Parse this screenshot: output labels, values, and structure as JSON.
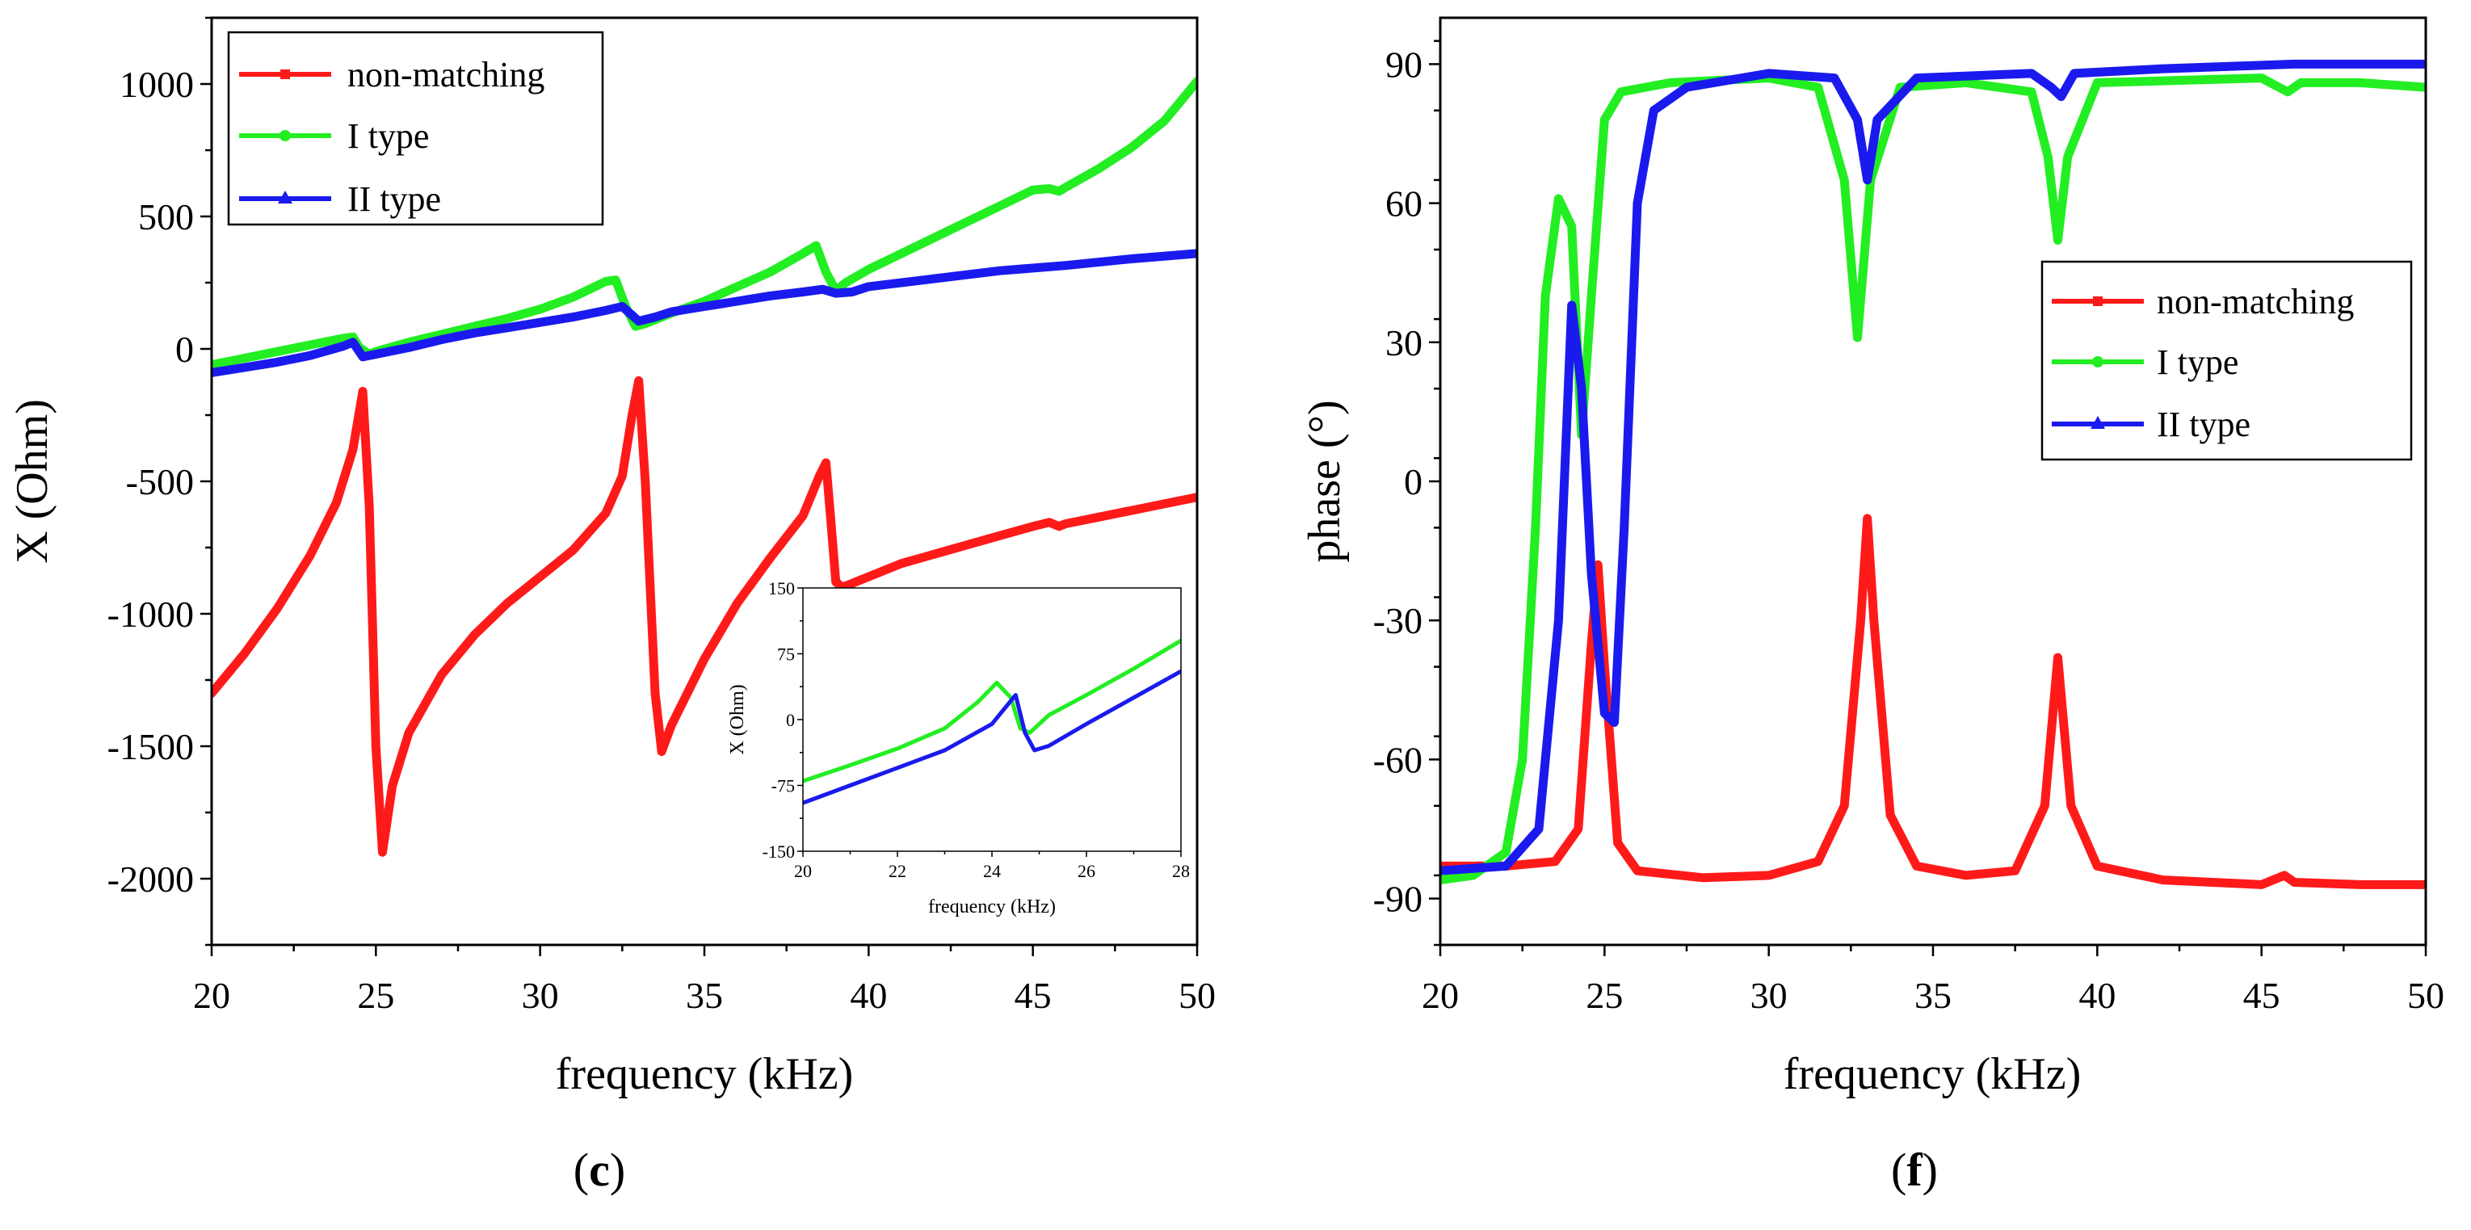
{
  "chart_data": [
    {
      "id": "c",
      "type": "line",
      "panel_label": "c",
      "xlabel": "frequency (kHz)",
      "ylabel": "X (Ohm)",
      "xlim": [
        20,
        50
      ],
      "ylim": [
        -2250,
        1250
      ],
      "xticks": [
        20,
        25,
        30,
        35,
        40,
        45,
        50
      ],
      "xtick_labels": [
        "20",
        "25",
        "30",
        "35",
        "40",
        "45",
        "50"
      ],
      "yticks": [
        -2000,
        -1500,
        -1000,
        -500,
        0,
        500,
        1000
      ],
      "ytick_labels": [
        "-2000",
        "-1500",
        "-1000",
        "-500",
        "0",
        "500",
        "1000"
      ],
      "legend_position": "top-left",
      "series": [
        {
          "name": "non-matching",
          "color": "#ff1a1a",
          "marker": "square",
          "points": [
            [
              20,
              -1300
            ],
            [
              21,
              -1150
            ],
            [
              22,
              -980
            ],
            [
              23,
              -780
            ],
            [
              23.8,
              -580
            ],
            [
              24.3,
              -380
            ],
            [
              24.6,
              -160
            ],
            [
              24.8,
              -600
            ],
            [
              25,
              -1500
            ],
            [
              25.2,
              -1900
            ],
            [
              25.5,
              -1650
            ],
            [
              26,
              -1450
            ],
            [
              27,
              -1230
            ],
            [
              28,
              -1080
            ],
            [
              29,
              -960
            ],
            [
              30,
              -860
            ],
            [
              31,
              -760
            ],
            [
              32,
              -620
            ],
            [
              32.5,
              -480
            ],
            [
              32.8,
              -250
            ],
            [
              33,
              -120
            ],
            [
              33.2,
              -500
            ],
            [
              33.5,
              -1300
            ],
            [
              33.7,
              -1520
            ],
            [
              34,
              -1420
            ],
            [
              35,
              -1170
            ],
            [
              36,
              -960
            ],
            [
              37,
              -790
            ],
            [
              38,
              -630
            ],
            [
              38.5,
              -480
            ],
            [
              38.7,
              -430
            ],
            [
              38.85,
              -650
            ],
            [
              39,
              -880
            ],
            [
              39.2,
              -900
            ],
            [
              40,
              -860
            ],
            [
              41,
              -810
            ],
            [
              42,
              -775
            ],
            [
              43,
              -740
            ],
            [
              44,
              -705
            ],
            [
              45,
              -670
            ],
            [
              45.5,
              -655
            ],
            [
              45.8,
              -670
            ],
            [
              46,
              -660
            ],
            [
              47,
              -635
            ],
            [
              48,
              -610
            ],
            [
              49,
              -585
            ],
            [
              50,
              -560
            ]
          ]
        },
        {
          "name": "I type",
          "color": "#22ee22",
          "marker": "circle",
          "points": [
            [
              20,
              -60
            ],
            [
              21,
              -35
            ],
            [
              22,
              -10
            ],
            [
              23,
              15
            ],
            [
              24,
              40
            ],
            [
              24.3,
              45
            ],
            [
              24.5,
              5
            ],
            [
              24.8,
              -20
            ],
            [
              25,
              -10
            ],
            [
              26,
              25
            ],
            [
              27,
              55
            ],
            [
              28,
              85
            ],
            [
              29,
              115
            ],
            [
              30,
              150
            ],
            [
              31,
              195
            ],
            [
              32,
              255
            ],
            [
              32.3,
              260
            ],
            [
              32.6,
              160
            ],
            [
              32.9,
              85
            ],
            [
              33.2,
              95
            ],
            [
              34,
              135
            ],
            [
              35,
              180
            ],
            [
              36,
              235
            ],
            [
              37,
              290
            ],
            [
              38,
              360
            ],
            [
              38.4,
              390
            ],
            [
              38.7,
              290
            ],
            [
              39,
              220
            ],
            [
              39.3,
              250
            ],
            [
              40,
              300
            ],
            [
              41,
              360
            ],
            [
              42,
              420
            ],
            [
              43,
              480
            ],
            [
              44,
              540
            ],
            [
              45,
              600
            ],
            [
              45.5,
              605
            ],
            [
              45.8,
              595
            ],
            [
              46,
              610
            ],
            [
              47,
              680
            ],
            [
              48,
              760
            ],
            [
              49,
              860
            ],
            [
              50,
              1010
            ]
          ]
        },
        {
          "name": "II type",
          "color": "#1a1aee",
          "marker": "triangle",
          "points": [
            [
              20,
              -90
            ],
            [
              21,
              -70
            ],
            [
              22,
              -50
            ],
            [
              23,
              -25
            ],
            [
              24,
              10
            ],
            [
              24.3,
              25
            ],
            [
              24.6,
              -30
            ],
            [
              25,
              -20
            ],
            [
              26,
              5
            ],
            [
              27,
              35
            ],
            [
              28,
              60
            ],
            [
              29,
              80
            ],
            [
              30,
              100
            ],
            [
              31,
              120
            ],
            [
              32,
              145
            ],
            [
              32.5,
              160
            ],
            [
              33,
              105
            ],
            [
              33.5,
              120
            ],
            [
              34,
              140
            ],
            [
              35,
              160
            ],
            [
              36,
              180
            ],
            [
              37,
              200
            ],
            [
              38,
              215
            ],
            [
              38.6,
              225
            ],
            [
              39,
              210
            ],
            [
              39.5,
              215
            ],
            [
              40,
              235
            ],
            [
              42,
              265
            ],
            [
              44,
              295
            ],
            [
              46,
              315
            ],
            [
              48,
              340
            ],
            [
              50,
              360
            ]
          ]
        }
      ],
      "inset": {
        "type": "line",
        "xlabel": "frequency (kHz)",
        "ylabel": "X (Ohm)",
        "xlim": [
          20,
          28
        ],
        "ylim": [
          -150,
          150
        ],
        "xticks": [
          20,
          22,
          24,
          26,
          28
        ],
        "xtick_labels": [
          "20",
          "22",
          "24",
          "26",
          "28"
        ],
        "yticks": [
          -150,
          -75,
          0,
          75,
          150
        ],
        "ytick_labels": [
          "-150",
          "-75",
          "0",
          "75",
          "150"
        ],
        "series": [
          {
            "name": "I type",
            "color": "#22ee22",
            "points": [
              [
                20,
                -70
              ],
              [
                21,
                -52
              ],
              [
                22,
                -33
              ],
              [
                23,
                -10
              ],
              [
                23.7,
                20
              ],
              [
                24.1,
                42
              ],
              [
                24.4,
                25
              ],
              [
                24.6,
                -10
              ],
              [
                24.8,
                -15
              ],
              [
                25.2,
                5
              ],
              [
                26,
                28
              ],
              [
                27,
                58
              ],
              [
                28,
                90
              ]
            ]
          },
          {
            "name": "II type",
            "color": "#1a1aee",
            "points": [
              [
                20,
                -95
              ],
              [
                21,
                -75
              ],
              [
                22,
                -55
              ],
              [
                23,
                -35
              ],
              [
                24,
                -5
              ],
              [
                24.5,
                28
              ],
              [
                24.7,
                -15
              ],
              [
                24.9,
                -35
              ],
              [
                25.2,
                -30
              ],
              [
                26,
                -5
              ],
              [
                27,
                25
              ],
              [
                28,
                55
              ]
            ]
          }
        ]
      }
    },
    {
      "id": "f",
      "type": "line",
      "panel_label": "f",
      "xlabel": "frequency (kHz)",
      "ylabel": "phase (°)",
      "xlim": [
        20,
        50
      ],
      "ylim": [
        -100,
        100
      ],
      "xticks": [
        20,
        25,
        30,
        35,
        40,
        45,
        50
      ],
      "xtick_labels": [
        "20",
        "25",
        "30",
        "35",
        "40",
        "45",
        "50"
      ],
      "yticks": [
        -90,
        -60,
        -30,
        0,
        30,
        60,
        90
      ],
      "ytick_labels": [
        "-90",
        "-60",
        "-30",
        "0",
        "30",
        "60",
        "90"
      ],
      "legend_position": "middle-right",
      "series": [
        {
          "name": "non-matching",
          "color": "#ff1a1a",
          "marker": "square",
          "points": [
            [
              20,
              -83
            ],
            [
              22,
              -83
            ],
            [
              23.5,
              -82
            ],
            [
              24.2,
              -75
            ],
            [
              24.6,
              -35
            ],
            [
              24.8,
              -18
            ],
            [
              25,
              -40
            ],
            [
              25.4,
              -78
            ],
            [
              26,
              -84
            ],
            [
              28,
              -85.5
            ],
            [
              30,
              -85
            ],
            [
              31.5,
              -82
            ],
            [
              32.3,
              -70
            ],
            [
              32.8,
              -30
            ],
            [
              33,
              -8
            ],
            [
              33.2,
              -30
            ],
            [
              33.7,
              -72
            ],
            [
              34.5,
              -83
            ],
            [
              36,
              -85
            ],
            [
              37.5,
              -84
            ],
            [
              38.4,
              -70
            ],
            [
              38.8,
              -38
            ],
            [
              39.2,
              -70
            ],
            [
              40,
              -83
            ],
            [
              42,
              -86
            ],
            [
              45,
              -87
            ],
            [
              45.7,
              -85
            ],
            [
              46,
              -86.5
            ],
            [
              48,
              -87
            ],
            [
              50,
              -87
            ]
          ]
        },
        {
          "name": "I type",
          "color": "#22ee22",
          "marker": "circle",
          "points": [
            [
              20,
              -86
            ],
            [
              21,
              -85
            ],
            [
              22,
              -80
            ],
            [
              22.5,
              -60
            ],
            [
              22.9,
              -10
            ],
            [
              23.2,
              40
            ],
            [
              23.6,
              61
            ],
            [
              24,
              55
            ],
            [
              24.3,
              10
            ],
            [
              24.6,
              40
            ],
            [
              25,
              78
            ],
            [
              25.5,
              84
            ],
            [
              27,
              86
            ],
            [
              30,
              87
            ],
            [
              31.5,
              85
            ],
            [
              32.3,
              65
            ],
            [
              32.7,
              31
            ],
            [
              33.1,
              65
            ],
            [
              34,
              85
            ],
            [
              36,
              86
            ],
            [
              38,
              84
            ],
            [
              38.5,
              70
            ],
            [
              38.8,
              52
            ],
            [
              39.1,
              70
            ],
            [
              40,
              86
            ],
            [
              45,
              87
            ],
            [
              45.8,
              84
            ],
            [
              46.2,
              86
            ],
            [
              48,
              86
            ],
            [
              50,
              85
            ]
          ]
        },
        {
          "name": "II type",
          "color": "#1a1aee",
          "marker": "triangle",
          "points": [
            [
              20,
              -84
            ],
            [
              22,
              -83
            ],
            [
              23,
              -75
            ],
            [
              23.6,
              -30
            ],
            [
              24,
              38
            ],
            [
              24.3,
              20
            ],
            [
              24.6,
              -20
            ],
            [
              25,
              -50
            ],
            [
              25.3,
              -52
            ],
            [
              25.6,
              -10
            ],
            [
              26,
              60
            ],
            [
              26.5,
              80
            ],
            [
              27.5,
              85
            ],
            [
              30,
              88
            ],
            [
              32,
              87
            ],
            [
              32.7,
              78
            ],
            [
              33,
              65
            ],
            [
              33.3,
              78
            ],
            [
              34.5,
              87
            ],
            [
              38,
              88
            ],
            [
              38.6,
              85
            ],
            [
              38.9,
              83
            ],
            [
              39.3,
              88
            ],
            [
              42,
              89
            ],
            [
              46,
              90
            ],
            [
              50,
              90
            ]
          ]
        }
      ]
    }
  ]
}
